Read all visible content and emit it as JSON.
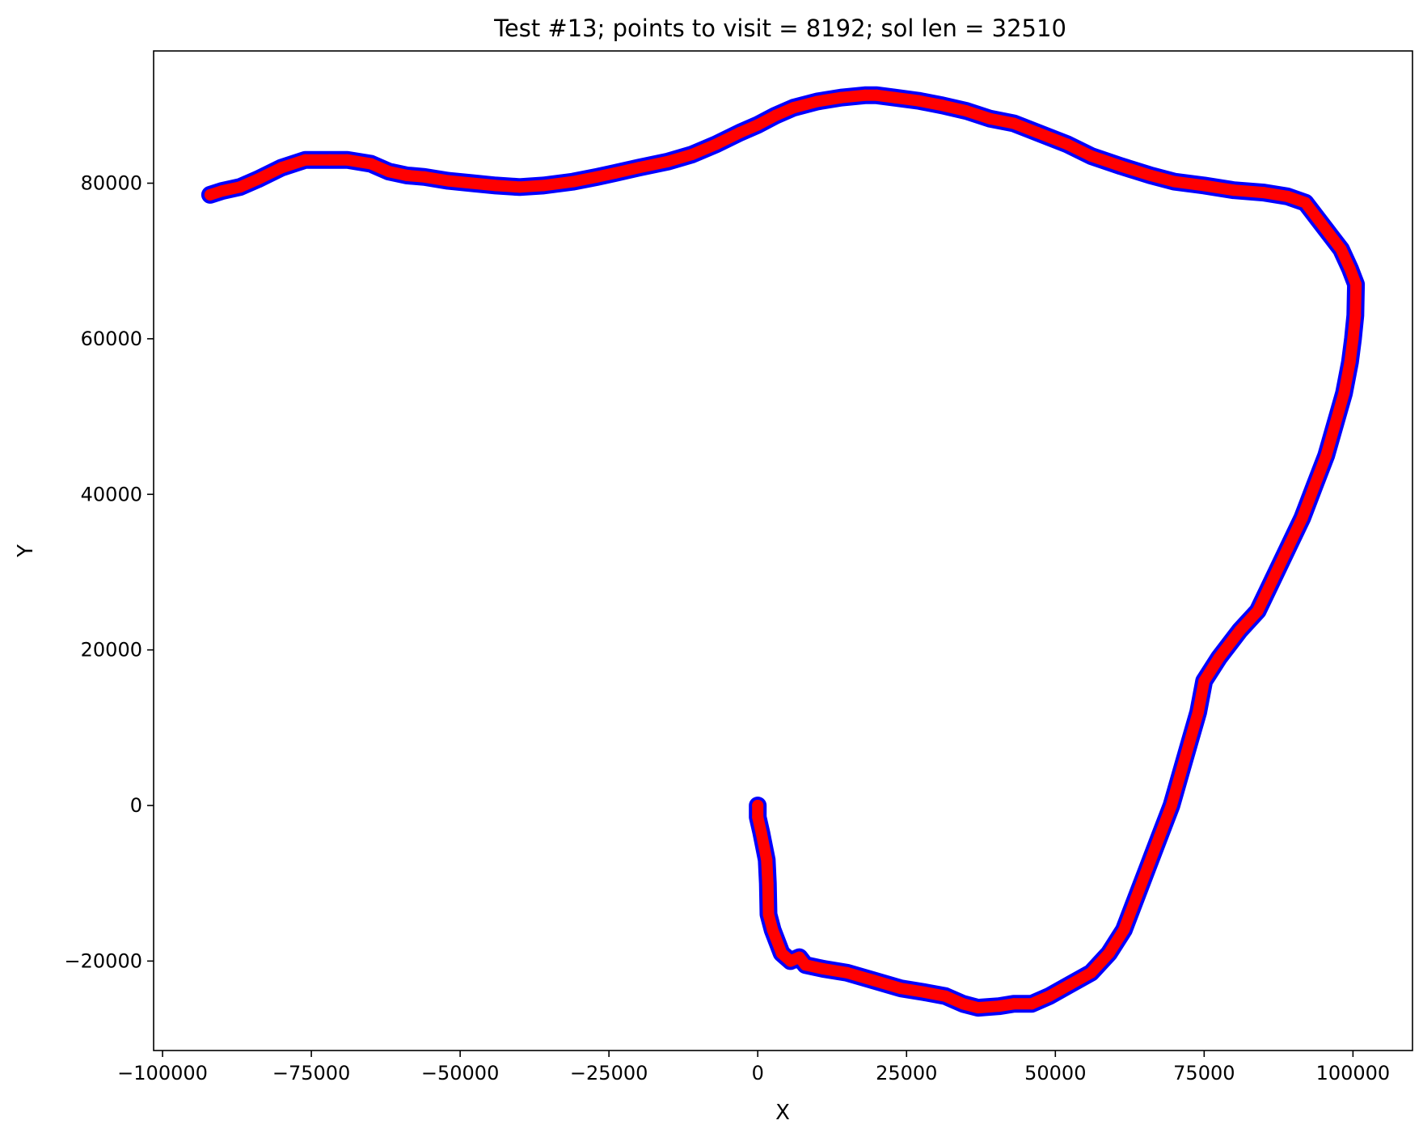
{
  "chart_data": {
    "type": "line",
    "title": "Test #13; points to visit = 8192; sol len = 32510",
    "xlabel": "X",
    "ylabel": "Y",
    "xlim": [
      -101500,
      110000
    ],
    "ylim": [
      -31500,
      97000
    ],
    "x_ticks": [
      -100000,
      -75000,
      -50000,
      -25000,
      0,
      25000,
      50000,
      75000,
      100000
    ],
    "x_tick_labels": [
      "−100000",
      "−75000",
      "−50000",
      "−25000",
      "0",
      "25000",
      "50000",
      "75000",
      "100000"
    ],
    "y_ticks": [
      -20000,
      0,
      20000,
      40000,
      60000,
      80000
    ],
    "y_tick_labels": [
      "−20000",
      "0",
      "20000",
      "40000",
      "60000",
      "80000"
    ],
    "grid": false,
    "colors": {
      "path_outer": "#0000ff",
      "path_inner": "#ff0000",
      "axes": "#000000"
    },
    "series": [
      {
        "x": [
          -92000,
          -90000,
          -87000,
          -84000,
          -80000,
          -76000,
          -72000,
          -69000,
          -65000,
          -62000,
          -59000,
          -56000,
          -52000,
          -48000,
          -44000,
          -40000,
          -36000,
          -31000,
          -27000,
          -24000,
          -20000,
          -15000,
          -11000,
          -7000,
          -3000,
          0,
          3000,
          6000,
          10000,
          14000,
          18000,
          20000,
          23000,
          27000,
          31000,
          35000,
          39000,
          43000,
          47000,
          52000,
          56000,
          61000,
          66000,
          70000,
          75000,
          80000,
          85000,
          89000,
          92000,
          94000,
          96000,
          98000,
          99500,
          100500,
          100400,
          100000,
          99500,
          98500,
          97000,
          95500,
          93500,
          91500,
          89000,
          86500,
          84000,
          81000,
          77500,
          75000,
          74000,
          72500,
          71000,
          69500,
          67500,
          65500,
          63500,
          61500,
          59000,
          56000,
          52500,
          49000,
          46000,
          43000,
          40500,
          37000,
          34500,
          31500,
          28000,
          24000,
          19500,
          15000,
          11000,
          8000,
          7000,
          5500,
          4000,
          2500,
          1800,
          1700,
          1500,
          600,
          0,
          0
        ],
        "y": [
          78500,
          79000,
          79500,
          80500,
          82000,
          83000,
          83000,
          83000,
          82500,
          81500,
          81000,
          80800,
          80300,
          80000,
          79700,
          79500,
          79700,
          80200,
          80800,
          81300,
          82000,
          82800,
          83700,
          85000,
          86500,
          87500,
          88700,
          89700,
          90500,
          91000,
          91300,
          91300,
          91000,
          90600,
          90000,
          89300,
          88300,
          87700,
          86500,
          85000,
          83500,
          82200,
          81000,
          80200,
          79700,
          79100,
          78800,
          78300,
          77500,
          75500,
          73500,
          71500,
          69000,
          67000,
          63000,
          60000,
          57000,
          53000,
          49000,
          45000,
          41000,
          37000,
          33000,
          29000,
          25000,
          22500,
          19000,
          16000,
          12000,
          8000,
          4000,
          0,
          -4000,
          -8000,
          -12000,
          -16000,
          -19000,
          -21500,
          -23000,
          -24500,
          -25500,
          -25500,
          -25800,
          -26000,
          -25500,
          -24500,
          -24000,
          -23500,
          -22500,
          -21500,
          -21000,
          -20500,
          -19500,
          -20000,
          -19000,
          -16000,
          -14000,
          -10000,
          -7000,
          -3500,
          -1500,
          0
        ],
        "marker": "o",
        "connected": true
      }
    ]
  }
}
